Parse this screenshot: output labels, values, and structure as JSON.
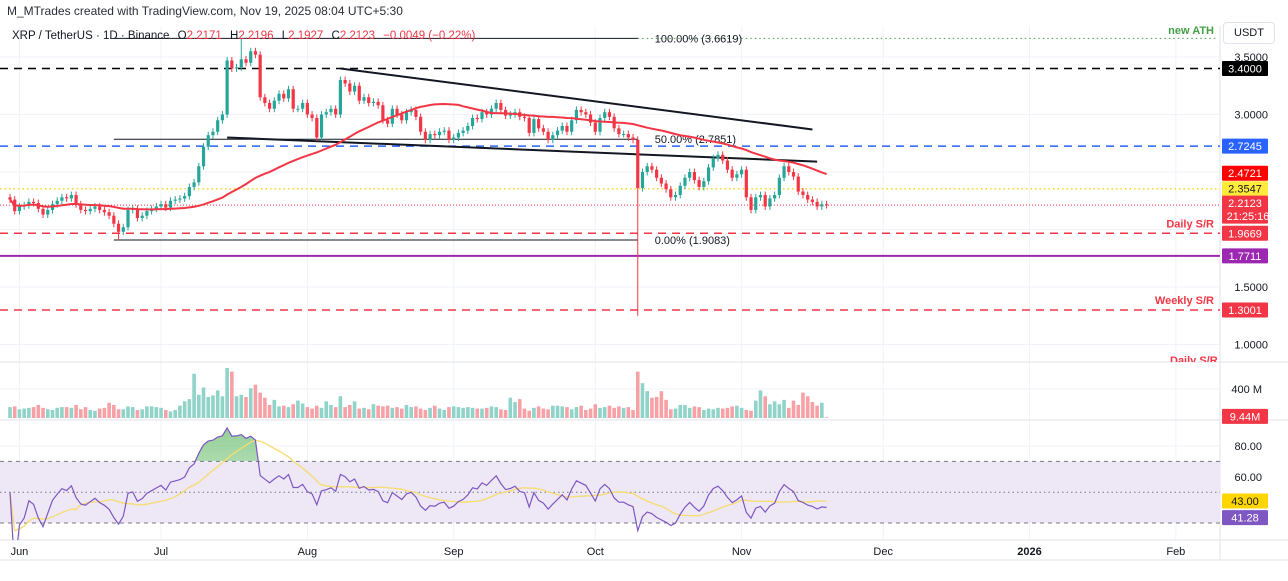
{
  "header": {
    "attribution": "M_MTrades created with TradingView.com, Nov 19, 2025 08:04 UTC+5:30"
  },
  "legend": {
    "symbol": "XRP / TetherUS · 1D · Binance",
    "o_label": "O",
    "o": "2.2171",
    "h_label": "H",
    "h": "2.2196",
    "l_label": "L",
    "l": "2.1927",
    "c_label": "C",
    "c": "2.2123",
    "change": "−0.0049 (−0.22%)"
  },
  "price_axis": {
    "currency": "USDT",
    "ticks": [
      {
        "price": 3.5,
        "label": "3.5000"
      },
      {
        "price": 3.0,
        "label": "3.0000"
      },
      {
        "price": 1.5,
        "label": "1.5000"
      },
      {
        "price": 1.0,
        "label": "1.0000"
      }
    ]
  },
  "volume_axis": {
    "tick_label": "400 M",
    "tick_value": 400,
    "last_tag": "9.44M"
  },
  "rsi_axis": {
    "ticks": [
      {
        "value": 80,
        "label": "80.00"
      },
      {
        "value": 60,
        "label": "60.00"
      }
    ],
    "upper_band": 70,
    "middle": 50,
    "lower_band": 30,
    "ma_tag": "43.00",
    "rsi_tag": "41.28"
  },
  "time_axis": {
    "labels": [
      {
        "label": "Jun",
        "date": "2025-06-01"
      },
      {
        "label": "Jul",
        "date": "2025-07-01"
      },
      {
        "label": "Aug",
        "date": "2025-08-01"
      },
      {
        "label": "Sep",
        "date": "2025-09-01"
      },
      {
        "label": "Oct",
        "date": "2025-10-01"
      },
      {
        "label": "Nov",
        "date": "2025-11-01"
      },
      {
        "label": "Dec",
        "date": "2025-12-01"
      },
      {
        "label": "2026",
        "date": "2026-01-01"
      },
      {
        "label": "Feb",
        "date": "2026-02-01"
      }
    ]
  },
  "colors": {
    "up": "#26a69a",
    "down": "#f23645",
    "sma": "#f23645",
    "rsi": "#7e57c2",
    "rsi_ma": "#f7dc6f",
    "rsi_band": "#ede7f6",
    "vol_up": "#8fd3c9",
    "vol_down": "#f7a1a6"
  },
  "annotations": {
    "new_ath": {
      "label": "new ATH",
      "price": 3.6619,
      "from": "2025-10-10",
      "color": "#43a047"
    },
    "fib": {
      "from": "2025-06-21",
      "to": "2025-10-10",
      "levels": [
        {
          "price": 3.6619,
          "label": "100.00% (3.6619)"
        },
        {
          "price": 2.7851,
          "label": "50.00% (2.7851)"
        },
        {
          "price": 1.9083,
          "label": "0.00% (1.9083)"
        }
      ]
    },
    "trendlines": [
      {
        "name": "upper-trendline",
        "from": {
          "date": "2025-08-08",
          "price": 3.4
        },
        "to": {
          "date": "2025-11-16",
          "price": 2.87
        }
      },
      {
        "name": "lower-trendline",
        "from": {
          "date": "2025-07-15",
          "price": 2.8
        },
        "to": {
          "date": "2025-11-17",
          "price": 2.59
        }
      }
    ],
    "extra_label": "Daily S/R"
  },
  "levels": [
    {
      "price": 3.4,
      "color": "#000000",
      "style": "dashed",
      "tag": "3.4000",
      "tag_bg": "#000000",
      "tag_fg": "#ffffff",
      "label": ""
    },
    {
      "price": 2.7245,
      "color": "#2962ff",
      "style": "dashed",
      "tag": "2.7245",
      "tag_bg": "#2962ff",
      "tag_fg": "#ffffff",
      "label": ""
    },
    {
      "price": 2.3547,
      "color": "#f9d71c",
      "style": "dotted",
      "tag": "2.3547",
      "tag_bg": "#ffeb3b",
      "tag_fg": "#131722",
      "label": ""
    },
    {
      "price": 1.9669,
      "color": "#f23645",
      "style": "dashed",
      "tag": "1.9669",
      "tag_bg": "#f23645",
      "tag_fg": "#ffffff",
      "label": "Daily S/R"
    },
    {
      "price": 1.7711,
      "color": "#9c27b0",
      "style": "solid",
      "tag": "1.7711",
      "tag_bg": "#9c27b0",
      "tag_fg": "#ffffff",
      "label": ""
    },
    {
      "price": 1.3001,
      "color": "#f23645",
      "style": "dashed",
      "tag": "1.3001",
      "tag_bg": "#f23645",
      "tag_fg": "#ffffff",
      "label": "Weekly S/R"
    }
  ],
  "current": {
    "price": 2.2123,
    "tag": "2.2123",
    "countdown": "21:25:16"
  },
  "sma_tag": {
    "price": 2.4721,
    "tag": "2.4721"
  },
  "chart_data": {
    "type": "candlestick",
    "title": "",
    "start_date": "2025-05-30",
    "end_date": "2025-11-19",
    "ylim": [
      0.85,
      3.75
    ],
    "grid": true,
    "moving_average_period": 50,
    "rsi_period": 14,
    "closes": [
      2.26,
      2.16,
      2.2,
      2.21,
      2.24,
      2.23,
      2.18,
      2.13,
      2.17,
      2.22,
      2.25,
      2.28,
      2.27,
      2.3,
      2.22,
      2.17,
      2.16,
      2.18,
      2.2,
      2.17,
      2.15,
      2.12,
      2.05,
      1.98,
      2.02,
      2.17,
      2.18,
      2.1,
      2.12,
      2.16,
      2.18,
      2.2,
      2.22,
      2.19,
      2.25,
      2.26,
      2.27,
      2.29,
      2.37,
      2.41,
      2.55,
      2.72,
      2.82,
      2.85,
      2.95,
      3.0,
      3.47,
      3.4,
      3.41,
      3.48,
      3.45,
      3.55,
      3.52,
      3.15,
      3.1,
      3.05,
      3.12,
      3.18,
      3.14,
      3.22,
      3.05,
      3.05,
      3.1,
      3.0,
      2.97,
      2.8,
      3.0,
      3.02,
      3.05,
      3.0,
      3.3,
      3.27,
      3.2,
      3.25,
      3.12,
      3.15,
      3.1,
      3.11,
      3.08,
      2.95,
      2.92,
      3.05,
      3.0,
      2.95,
      3.02,
      3.04,
      2.98,
      2.85,
      2.78,
      2.83,
      2.82,
      2.85,
      2.86,
      2.78,
      2.8,
      2.84,
      2.86,
      2.9,
      2.97,
      2.96,
      3.02,
      3.0,
      3.05,
      3.1,
      3.04,
      2.99,
      3.0,
      3.02,
      2.98,
      2.97,
      2.84,
      2.96,
      2.88,
      2.85,
      2.78,
      2.82,
      2.86,
      2.9,
      2.85,
      2.95,
      3.04,
      3.02,
      3.0,
      2.93,
      2.85,
      2.97,
      3.02,
      2.98,
      2.88,
      2.83,
      2.83,
      2.8,
      2.78,
      2.36,
      2.5,
      2.55,
      2.52,
      2.45,
      2.4,
      2.35,
      2.28,
      2.3,
      2.38,
      2.45,
      2.5,
      2.43,
      2.37,
      2.42,
      2.54,
      2.62,
      2.65,
      2.6,
      2.52,
      2.45,
      2.48,
      2.52,
      2.28,
      2.17,
      2.28,
      2.3,
      2.2,
      2.27,
      2.3,
      2.45,
      2.55,
      2.5,
      2.46,
      2.33,
      2.3,
      2.26,
      2.24,
      2.2,
      2.22,
      2.2123
    ],
    "wick_overrides": [
      {
        "date": "2025-06-22",
        "low": 1.9083
      },
      {
        "date": "2025-07-18",
        "high": 3.6619
      },
      {
        "date": "2025-10-10",
        "low": 1.25
      }
    ],
    "volume_millions": [
      150,
      160,
      120,
      130,
      140,
      150,
      180,
      140,
      120,
      110,
      140,
      150,
      150,
      140,
      180,
      120,
      150,
      110,
      100,
      130,
      140,
      210,
      180,
      120,
      120,
      160,
      150,
      110,
      120,
      160,
      160,
      150,
      140,
      110,
      90,
      110,
      170,
      230,
      260,
      610,
      320,
      420,
      290,
      310,
      380,
      300,
      690,
      640,
      300,
      320,
      290,
      410,
      460,
      350,
      280,
      180,
      250,
      160,
      170,
      150,
      190,
      240,
      200,
      150,
      130,
      170,
      140,
      230,
      180,
      150,
      300,
      150,
      180,
      230,
      130,
      140,
      120,
      190,
      170,
      160,
      170,
      140,
      150,
      130,
      180,
      150,
      160,
      130,
      110,
      140,
      170,
      130,
      110,
      150,
      160,
      150,
      140,
      150,
      140,
      130,
      130,
      140,
      160,
      150,
      120,
      110,
      280,
      220,
      260,
      130,
      100,
      140,
      160,
      130,
      120,
      170,
      170,
      160,
      150,
      120,
      150,
      170,
      110,
      130,
      190,
      140,
      150,
      170,
      140,
      160,
      140,
      150,
      110,
      640,
      480,
      370,
      280,
      290,
      370,
      250,
      120,
      130,
      180,
      180,
      140,
      160,
      150,
      110,
      130,
      120,
      140,
      130,
      140,
      160,
      170,
      140,
      110,
      100,
      240,
      380,
      300,
      190,
      230,
      190,
      250,
      140,
      240,
      180,
      350,
      300,
      220,
      170,
      210,
      9.44
    ]
  }
}
